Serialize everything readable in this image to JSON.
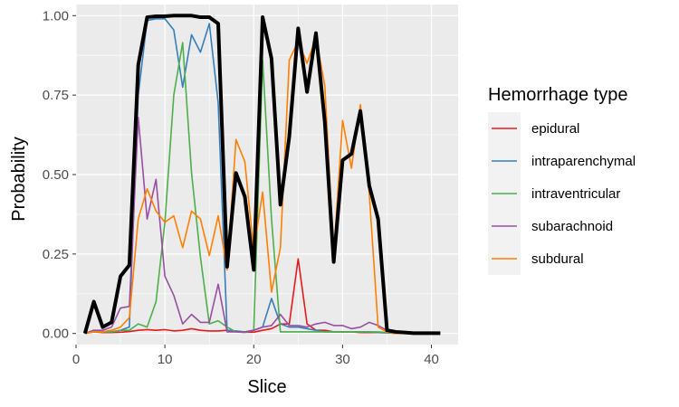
{
  "chart_data": {
    "type": "line",
    "xlabel": "Slice",
    "ylabel": "Probability",
    "xlim": [
      0,
      43
    ],
    "ylim": [
      -0.035,
      1.035
    ],
    "xticks": [
      0,
      10,
      20,
      30,
      40
    ],
    "yticks": [
      0.0,
      0.25,
      0.5,
      0.75,
      1.0
    ],
    "ytick_labels": [
      "0.00",
      "0.25",
      "0.50",
      "0.75",
      "1.00"
    ],
    "grid": true,
    "legend": {
      "title": "Hemorrhage type",
      "placement": "right",
      "entries": [
        "epidural",
        "intraparenchymal",
        "intraventricular",
        "subarachnoid",
        "subdural"
      ]
    },
    "x": [
      1,
      2,
      3,
      4,
      5,
      6,
      7,
      8,
      9,
      10,
      11,
      12,
      13,
      14,
      15,
      16,
      17,
      18,
      19,
      20,
      21,
      22,
      23,
      24,
      25,
      26,
      27,
      28,
      29,
      30,
      31,
      32,
      33,
      34,
      35,
      36,
      37,
      38,
      39,
      40,
      41
    ],
    "series": [
      {
        "name": "epidural",
        "color": "#E41A1C",
        "width": 1.6,
        "values": [
          0.0,
          0.005,
          0.003,
          0.003,
          0.004,
          0.006,
          0.01,
          0.012,
          0.01,
          0.012,
          0.008,
          0.01,
          0.015,
          0.01,
          0.008,
          0.008,
          0.01,
          0.006,
          0.004,
          0.004,
          0.01,
          0.015,
          0.03,
          0.03,
          0.235,
          0.03,
          0.01,
          0.01,
          0.005,
          0.005,
          0.005,
          0.003,
          0.003,
          0.003,
          0.002,
          0.002,
          0.0,
          0.0,
          0.0,
          0.0,
          0.0
        ]
      },
      {
        "name": "intraparenchymal",
        "color": "#377EB8",
        "width": 1.6,
        "values": [
          0.0,
          0.01,
          0.005,
          0.005,
          0.01,
          0.02,
          0.75,
          0.985,
          0.99,
          0.99,
          0.955,
          0.775,
          0.94,
          0.885,
          0.975,
          0.725,
          0.01,
          0.008,
          0.005,
          0.01,
          0.02,
          0.11,
          0.03,
          0.02,
          0.02,
          0.015,
          0.01,
          0.005,
          0.005,
          0.005,
          0.005,
          0.005,
          0.005,
          0.003,
          0.002,
          0.0,
          0.0,
          0.0,
          0.0,
          0.0,
          0.0
        ]
      },
      {
        "name": "intraventricular",
        "color": "#4DAF4A",
        "width": 1.6,
        "values": [
          0.0,
          0.005,
          0.005,
          0.005,
          0.01,
          0.01,
          0.03,
          0.02,
          0.1,
          0.35,
          0.75,
          0.915,
          0.505,
          0.24,
          0.03,
          0.04,
          0.02,
          0.005,
          0.003,
          0.01,
          0.86,
          0.36,
          0.005,
          0.005,
          0.005,
          0.005,
          0.005,
          0.005,
          0.005,
          0.005,
          0.005,
          0.005,
          0.005,
          0.005,
          0.003,
          0.002,
          0.0,
          0.0,
          0.0,
          0.0,
          0.0
        ]
      },
      {
        "name": "subarachnoid",
        "color": "#984EA3",
        "width": 1.6,
        "values": [
          0.0,
          0.01,
          0.01,
          0.02,
          0.08,
          0.085,
          0.68,
          0.36,
          0.485,
          0.18,
          0.12,
          0.03,
          0.06,
          0.035,
          0.035,
          0.155,
          0.005,
          0.005,
          0.005,
          0.01,
          0.02,
          0.025,
          0.06,
          0.025,
          0.025,
          0.02,
          0.03,
          0.035,
          0.025,
          0.025,
          0.015,
          0.02,
          0.035,
          0.025,
          0.01,
          0.005,
          0.0,
          0.0,
          0.0,
          0.0,
          0.0
        ]
      },
      {
        "name": "subdural",
        "color": "#FF7F00",
        "width": 1.6,
        "values": [
          0.0,
          0.005,
          0.005,
          0.01,
          0.02,
          0.05,
          0.36,
          0.455,
          0.385,
          0.35,
          0.37,
          0.27,
          0.385,
          0.36,
          0.245,
          0.37,
          0.2,
          0.61,
          0.54,
          0.26,
          0.445,
          0.13,
          0.27,
          0.86,
          0.92,
          0.85,
          0.93,
          0.78,
          0.25,
          0.67,
          0.52,
          0.72,
          0.44,
          0.02,
          0.005,
          0.0,
          0.0,
          0.0,
          0.0,
          0.0,
          0.0
        ]
      },
      {
        "name": "",
        "color": "#000000",
        "width": 4,
        "values": [
          0.0,
          0.1,
          0.02,
          0.035,
          0.18,
          0.215,
          0.845,
          0.995,
          0.998,
          0.998,
          1.0,
          1.0,
          1.0,
          0.995,
          0.995,
          0.975,
          0.21,
          0.505,
          0.43,
          0.2,
          0.995,
          0.865,
          0.405,
          0.62,
          0.96,
          0.76,
          0.945,
          0.665,
          0.225,
          0.545,
          0.565,
          0.7,
          0.465,
          0.36,
          0.01,
          0.005,
          0.003,
          0.001,
          0.001,
          0.001,
          0.001
        ]
      }
    ]
  }
}
